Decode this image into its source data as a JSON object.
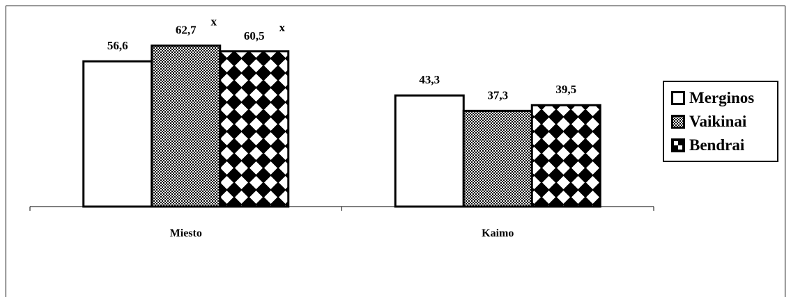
{
  "chart_data": {
    "type": "bar",
    "categories": [
      "Miesto",
      "Kaimo"
    ],
    "series": [
      {
        "name": "Merginos",
        "values": [
          56.6,
          43.3
        ],
        "value_labels": [
          "56,6",
          "43,3"
        ],
        "markers": [
          "",
          ""
        ]
      },
      {
        "name": "Vaikinai",
        "values": [
          62.7,
          37.3
        ],
        "value_labels": [
          "62,7",
          "37,3"
        ],
        "markers": [
          "x",
          ""
        ]
      },
      {
        "name": "Bendrai",
        "values": [
          60.5,
          39.5
        ],
        "value_labels": [
          "60,5",
          "39,5"
        ],
        "markers": [
          "x",
          ""
        ]
      }
    ],
    "title": "",
    "xlabel": "",
    "ylabel": "",
    "ylim": [
      0,
      80
    ],
    "grid": false,
    "legend": "right",
    "colors": {
      "bar_stroke": "#000000",
      "pattern_dark": "#000000",
      "pattern_light": "#ffffff"
    }
  }
}
